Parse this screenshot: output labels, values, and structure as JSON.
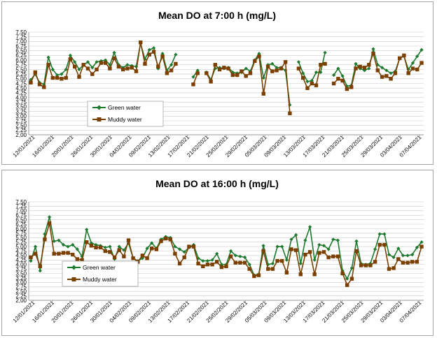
{
  "chart_data": [
    {
      "type": "line",
      "title": "Mean DO at 7:00 h (mg/L)",
      "xlabel": "",
      "ylabel": "",
      "ylim": [
        2.0,
        7.5
      ],
      "ytick_step": 0.25,
      "grid": true,
      "x_tick_labels": [
        "12/01/2021",
        "16/01/2021",
        "20/01/2021",
        "26/01/2021",
        "30/01/2021",
        "04/02/2021",
        "09/02/2021",
        "13/02/2021",
        "17/02/2021",
        "21/02/2021",
        "25/02/2021",
        "29/02/2021",
        "05/03/2021",
        "09/03/2021",
        "13/03/2021",
        "17/03/2021",
        "21/03/2021",
        "25/03/2021",
        "29/03/2021",
        "03/04/2021",
        "07/04/2021"
      ],
      "legend_position": "lower-left",
      "series": [
        {
          "name": "Green water",
          "color": "#1e7a2e",
          "marker": "diamond",
          "values": [
            4.95,
            5.25,
            4.8,
            4.7,
            6.15,
            5.5,
            5.2,
            5.25,
            5.5,
            6.25,
            5.9,
            5.5,
            5.75,
            5.9,
            5.6,
            5.9,
            5.95,
            6.0,
            5.75,
            6.4,
            5.75,
            5.6,
            5.75,
            5.7,
            5.65,
            6.9,
            6.05,
            6.55,
            6.65,
            5.55,
            6.35,
            5.45,
            5.75,
            6.3,
            null,
            null,
            null,
            5.1,
            5.45,
            null,
            5.35,
            4.95,
            5.55,
            5.6,
            5.55,
            5.6,
            5.35,
            5.3,
            5.35,
            5.55,
            5.4,
            6.0,
            6.35,
            5.05,
            5.75,
            5.8,
            5.6,
            5.6,
            5.45,
            3.6,
            null,
            5.9,
            5.3,
            4.85,
            4.9,
            5.35,
            5.35,
            6.4,
            null,
            5.2,
            5.55,
            5.15,
            4.6,
            4.65,
            5.8,
            5.55,
            5.45,
            5.55,
            6.6,
            5.75,
            5.6,
            5.45,
            5.3,
            5.4,
            6.1,
            6.2,
            5.5,
            5.85,
            6.2,
            6.55
          ]
        },
        {
          "name": "Muddy water",
          "color": "#7b3f00",
          "marker": "square",
          "values": [
            4.8,
            5.35,
            4.7,
            4.55,
            5.75,
            5.05,
            5.05,
            5.0,
            5.05,
            6.05,
            5.65,
            5.1,
            5.75,
            5.55,
            5.25,
            5.5,
            5.85,
            5.85,
            5.55,
            6.1,
            5.65,
            5.5,
            5.55,
            5.6,
            5.4,
            6.95,
            5.8,
            6.3,
            6.45,
            5.65,
            6.2,
            5.3,
            5.45,
            5.8,
            null,
            null,
            null,
            4.7,
            5.3,
            null,
            5.3,
            4.85,
            5.75,
            5.5,
            5.6,
            5.55,
            5.2,
            5.2,
            5.4,
            5.15,
            5.3,
            5.95,
            6.2,
            4.2,
            5.65,
            5.4,
            5.45,
            5.55,
            5.9,
            3.15,
            null,
            5.55,
            5.05,
            4.5,
            4.75,
            4.65,
            5.75,
            5.8,
            null,
            4.75,
            5.0,
            4.9,
            4.45,
            4.55,
            5.55,
            5.65,
            5.6,
            5.75,
            6.35,
            5.45,
            5.1,
            5.15,
            5.0,
            5.3,
            6.1,
            6.25,
            5.3,
            5.55,
            5.5,
            5.85
          ]
        }
      ]
    },
    {
      "type": "line",
      "title": "Mean DO at 16:00 h (mg/L)",
      "xlabel": "",
      "ylabel": "",
      "ylim": [
        2.0,
        7.5
      ],
      "ytick_step": 0.25,
      "grid": true,
      "x_tick_labels": [
        "12/01/2021",
        "16/01/2021",
        "20/01/2021",
        "26/01/2021",
        "30/01/2021",
        "04/02/2021",
        "09/02/2021",
        "13/02/2021",
        "17/02/2021",
        "21/02/2021",
        "25/02/2021",
        "29/02/2021",
        "05/03/2021",
        "09/03/2021",
        "13/03/2021",
        "17/03/2021",
        "21/03/2021",
        "25/03/2021",
        "29/03/2021",
        "03/04/2021",
        "07/04/2021"
      ],
      "legend_position": "lower-left",
      "series": [
        {
          "name": "Green water",
          "color": "#1e7a2e",
          "marker": "diamond",
          "values": [
            4.2,
            5.0,
            3.65,
            5.7,
            6.65,
            5.3,
            5.35,
            5.1,
            5.0,
            5.1,
            4.85,
            4.45,
            5.95,
            5.2,
            5.1,
            5.05,
            4.95,
            5.0,
            4.3,
            5.0,
            4.8,
            5.2,
            4.35,
            4.2,
            4.35,
            4.9,
            5.2,
            4.9,
            5.4,
            5.55,
            5.5,
            5.0,
            4.85,
            4.7,
            4.95,
            5.1,
            4.35,
            4.2,
            4.2,
            4.25,
            4.6,
            4.0,
            4.0,
            4.75,
            4.5,
            4.45,
            4.4,
            4.0,
            3.4,
            3.45,
            5.05,
            4.0,
            4.05,
            5.0,
            5.0,
            4.25,
            5.4,
            5.65,
            4.05,
            5.35,
            6.1,
            4.25,
            5.1,
            5.05,
            4.85,
            5.4,
            5.35,
            3.65,
            3.2,
            3.8,
            5.3,
            4.05,
            4.0,
            4.05,
            4.85,
            5.7,
            5.7,
            4.55,
            4.4,
            4.9,
            4.5,
            4.5,
            4.55,
            4.95,
            5.25
          ]
        },
        {
          "name": "Muddy water",
          "color": "#7b3f00",
          "marker": "square",
          "values": [
            4.4,
            4.6,
            3.9,
            5.4,
            6.3,
            4.6,
            4.6,
            4.65,
            4.65,
            4.55,
            4.3,
            4.25,
            5.25,
            5.05,
            4.95,
            4.95,
            4.75,
            4.7,
            4.4,
            4.8,
            4.45,
            5.35,
            4.35,
            4.15,
            4.5,
            4.35,
            4.9,
            4.85,
            5.3,
            5.45,
            5.4,
            4.6,
            4.05,
            4.4,
            5.0,
            5.0,
            4.05,
            3.9,
            4.0,
            4.0,
            4.15,
            3.85,
            3.9,
            4.45,
            4.1,
            4.1,
            4.1,
            3.75,
            3.35,
            3.4,
            4.75,
            3.75,
            3.75,
            4.2,
            4.2,
            3.55,
            4.85,
            4.8,
            3.45,
            4.55,
            4.7,
            3.45,
            4.65,
            4.7,
            4.4,
            4.45,
            4.45,
            3.5,
            2.85,
            3.2,
            4.75,
            3.95,
            3.95,
            3.95,
            4.15,
            5.1,
            5.1,
            3.75,
            3.8,
            4.3,
            4.1,
            4.1,
            4.15,
            4.15,
            5.0
          ]
        }
      ]
    }
  ]
}
